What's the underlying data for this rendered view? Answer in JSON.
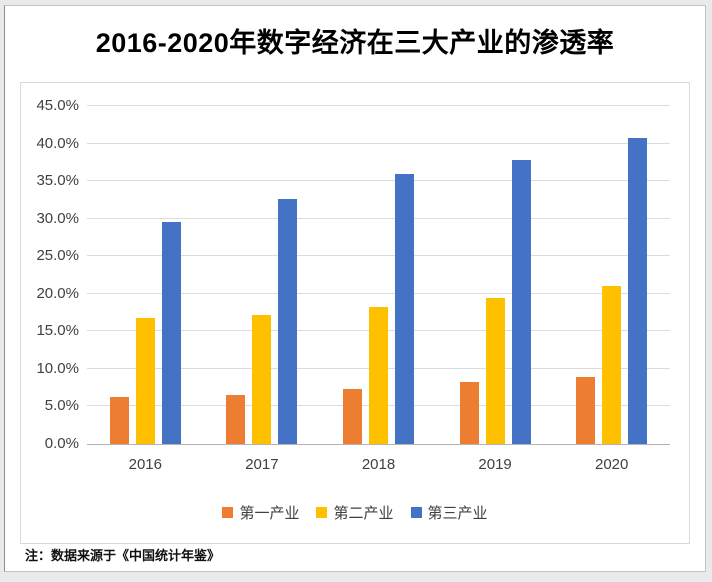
{
  "page": {
    "title": "2016-2020年数字经济在三大产业的渗透率",
    "note": "注：数据来源于《中国统计年鉴》"
  },
  "chart_data": {
    "type": "bar",
    "title": "2016-2020年数字经济在三大产业的渗透率",
    "categories": [
      "2016",
      "2017",
      "2018",
      "2019",
      "2020"
    ],
    "series": [
      {
        "name": "第一产业",
        "color": "#ED7D31",
        "values": [
          6.2,
          6.5,
          7.3,
          8.2,
          8.9
        ]
      },
      {
        "name": "第二产业",
        "color": "#FFC000",
        "values": [
          16.8,
          17.2,
          18.3,
          19.5,
          21.0
        ]
      },
      {
        "name": "第三产业",
        "color": "#4472C4",
        "values": [
          29.6,
          32.6,
          35.9,
          37.8,
          40.7
        ]
      }
    ],
    "unit": "percent",
    "ylim": [
      0,
      45
    ],
    "y_tick_step": 5,
    "y_ticks": [
      "0.0%",
      "5.0%",
      "10.0%",
      "15.0%",
      "20.0%",
      "25.0%",
      "30.0%",
      "35.0%",
      "40.0%",
      "45.0%"
    ],
    "grid": true,
    "legend_position": "bottom",
    "source_note": "注：数据来源于《中国统计年鉴》"
  }
}
